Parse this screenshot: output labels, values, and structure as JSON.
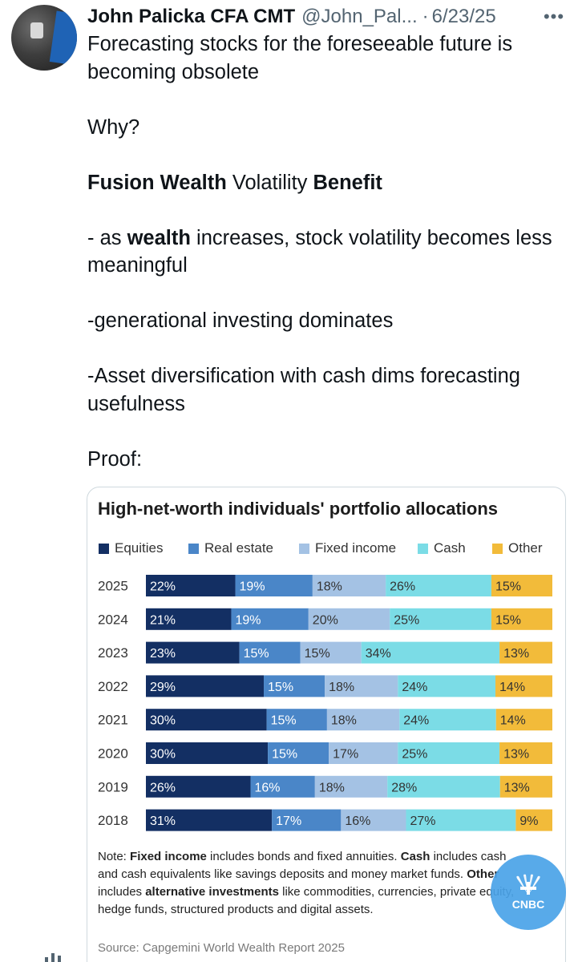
{
  "tweet": {
    "author_name": "John Palicka CFA CMT",
    "handle": "@John_Pal...",
    "separator": "·",
    "date": "6/23/25",
    "more_label": "•••",
    "lines": {
      "l1": "Forecasting stocks for the foreseeable future is becoming obsolete",
      "l2": "Why?",
      "l3_b1": "Fusion Wealth",
      "l3_t": " Volatility ",
      "l3_b2": "Benefit",
      "l4_a": "- as ",
      "l4_b": "wealth",
      "l4_c": " increases, stock volatility becomes less meaningful",
      "l5": "-generational investing dominates",
      "l6": "-Asset diversification with cash dims forecasting usefulness",
      "l7": "Proof:"
    }
  },
  "card": {
    "title": "High-net-worth individuals' portfolio allocations",
    "note": {
      "p1": "Note: ",
      "b1": "Fixed income",
      "p2": " includes bonds and fixed annuities. ",
      "b2": "Cash",
      "p3": " includes cash and cash equivalents like savings deposits and money market funds. ",
      "b3": "Other",
      "p4": " includes ",
      "b4": "alternative investments",
      "p5": " like commodities, currencies, private equity, hedge funds, structured products and digital assets."
    },
    "source": "Source: Capgemini World Wealth Report 2025"
  },
  "badge": {
    "label": "CNBC"
  },
  "colors": {
    "Equities": "#132f63",
    "Real estate": "#4a86c8",
    "Fixed income": "#a4c2e4",
    "Cash": "#7bdce6",
    "Other": "#f2bb3a"
  },
  "chart_data": {
    "type": "bar",
    "orientation": "horizontal",
    "stacked": "100%",
    "title": "High-net-worth individuals' portfolio allocations",
    "legend_position": "top",
    "categories": [
      "2025",
      "2024",
      "2023",
      "2022",
      "2021",
      "2020",
      "2019",
      "2018"
    ],
    "series": [
      {
        "name": "Equities",
        "values": [
          22,
          21,
          23,
          29,
          30,
          30,
          26,
          31
        ]
      },
      {
        "name": "Real estate",
        "values": [
          19,
          19,
          15,
          15,
          15,
          15,
          16,
          17
        ]
      },
      {
        "name": "Fixed income",
        "values": [
          18,
          20,
          15,
          18,
          18,
          17,
          18,
          16
        ]
      },
      {
        "name": "Cash",
        "values": [
          26,
          25,
          34,
          24,
          24,
          25,
          28,
          27
        ]
      },
      {
        "name": "Other",
        "values": [
          15,
          15,
          13,
          14,
          14,
          13,
          13,
          9
        ]
      }
    ],
    "unit": "%"
  }
}
